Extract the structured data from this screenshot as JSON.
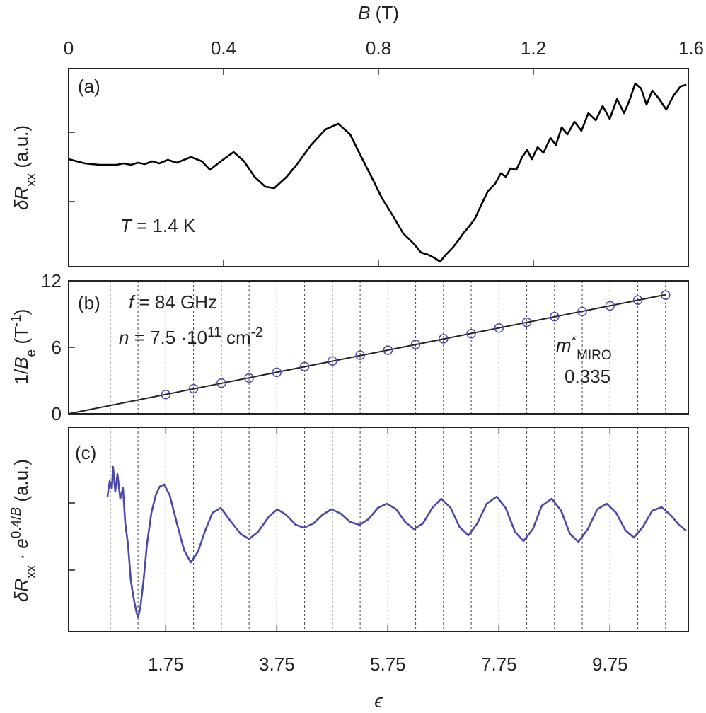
{
  "chart_data": [
    {
      "type": "line",
      "panel_label": "(a)",
      "xlabel": [
        {
          "text": "B",
          "style": "italic"
        },
        {
          "text": " (T)"
        }
      ],
      "xaxis": "top",
      "xlim": [
        0,
        1.6
      ],
      "xticks": [
        0,
        0.4,
        0.8,
        1.2,
        1.6
      ],
      "ylim": [
        0,
        280
      ],
      "yticks": [
        92,
        190
      ],
      "ylabel": [
        {
          "text": "δR",
          "style": "italic"
        },
        {
          "text": "xx",
          "style": "sub"
        },
        {
          "text": "  (a.u.)"
        }
      ],
      "annotations": [
        [
          {
            "text": "T",
            "style": "italic"
          },
          {
            "text": " = 1.4 K"
          }
        ]
      ],
      "series": [
        {
          "color": "#000000",
          "x": [
            0,
            0.042,
            0.079,
            0.124,
            0.142,
            0.161,
            0.179,
            0.197,
            0.216,
            0.234,
            0.256,
            0.279,
            0.316,
            0.344,
            0.365,
            0.393,
            0.426,
            0.453,
            0.48,
            0.508,
            0.531,
            0.563,
            0.59,
            0.626,
            0.663,
            0.696,
            0.727,
            0.754,
            0.782,
            0.809,
            0.837,
            0.864,
            0.892,
            0.91,
            0.928,
            0.946,
            0.959,
            0.974,
            0.992,
            1.006,
            1.019,
            1.037,
            1.05,
            1.065,
            1.083,
            1.101,
            1.116,
            1.129,
            1.141,
            1.156,
            1.171,
            1.184,
            1.196,
            1.211,
            1.226,
            1.244,
            1.258,
            1.273,
            1.288,
            1.306,
            1.324,
            1.342,
            1.361,
            1.379,
            1.397,
            1.416,
            1.434,
            1.448,
            1.463,
            1.478,
            1.492,
            1.507,
            1.525,
            1.543,
            1.562,
            1.58,
            1.595
          ],
          "values": [
            152,
            146,
            144,
            144,
            146,
            144,
            147,
            145,
            149,
            146,
            151,
            147,
            155,
            149,
            137,
            149,
            162,
            149,
            127,
            113,
            111,
            127,
            145,
            172,
            194,
            202,
            187,
            157,
            127,
            97,
            72,
            47,
            32,
            20,
            17,
            12,
            7,
            17,
            27,
            37,
            47,
            59,
            69,
            87,
            107,
            117,
            132,
            127,
            139,
            137,
            155,
            165,
            152,
            169,
            161,
            182,
            172,
            197,
            187,
            205,
            192,
            217,
            207,
            227,
            209,
            237,
            217,
            235,
            259,
            252,
            229,
            249,
            237,
            222,
            242,
            255,
            257
          ]
        }
      ]
    },
    {
      "type": "scatter",
      "panel_label": "(b)",
      "xlim": [
        0,
        11.16
      ],
      "ylim": [
        0,
        12
      ],
      "yticks": [
        0,
        6,
        12
      ],
      "ylabel": [
        {
          "text": "1/"
        },
        {
          "text": "B",
          "style": "italic"
        },
        {
          "text": "e",
          "style": "sub"
        },
        {
          "text": " (T"
        },
        {
          "text": "-1",
          "style": "sup"
        },
        {
          "text": ")"
        }
      ],
      "vlines": [
        0.75,
        1.25,
        1.75,
        2.25,
        2.75,
        3.25,
        3.75,
        4.25,
        4.75,
        5.25,
        5.75,
        6.25,
        6.75,
        7.25,
        7.75,
        8.25,
        8.75,
        9.25,
        9.75,
        10.25,
        10.75
      ],
      "annotations": [
        [
          {
            "text": "f",
            "style": "italic"
          },
          {
            "text": " = 84 GHz"
          }
        ],
        [
          {
            "text": "n",
            "style": "italic"
          },
          {
            "text": " = 7.5 ·10"
          },
          {
            "text": "11",
            "style": "sup"
          },
          {
            "text": " cm"
          },
          {
            "text": "-2",
            "style": "sup"
          }
        ],
        [
          {
            "text": "m",
            "style": "italic"
          },
          {
            "text": "*",
            "style": "sup"
          },
          {
            "text": "MIRO",
            "style": "sub"
          }
        ],
        [
          {
            "text": "0.335"
          }
        ]
      ],
      "series": [
        {
          "marker": "line",
          "color": "#222222",
          "x": [
            0,
            10.75
          ],
          "values": [
            0,
            10.75
          ]
        },
        {
          "marker": "circle",
          "color": "#4a4aa8",
          "x": [
            1.75,
            2.25,
            2.75,
            3.25,
            3.75,
            4.25,
            4.75,
            5.25,
            5.75,
            6.25,
            6.75,
            7.25,
            7.75,
            8.25,
            8.75,
            9.25,
            9.75,
            10.25,
            10.75
          ],
          "values": [
            1.74,
            2.26,
            2.77,
            3.23,
            3.74,
            4.26,
            4.77,
            5.29,
            5.74,
            6.26,
            6.77,
            7.23,
            7.74,
            8.26,
            8.77,
            9.23,
            9.74,
            10.26,
            10.71
          ]
        }
      ]
    },
    {
      "type": "line",
      "panel_label": "(c)",
      "xlabel": [
        {
          "text": "ϵ",
          "style": "italic"
        }
      ],
      "xaxis": "bottom",
      "xlim": [
        0,
        11.16
      ],
      "xticks": [
        1.75,
        3.75,
        5.75,
        7.75,
        9.75
      ],
      "ylim": [
        0,
        289
      ],
      "yticks": [
        87,
        182
      ],
      "ylabel": [
        {
          "text": "δR",
          "style": "italic"
        },
        {
          "text": "xx",
          "style": "sub"
        },
        {
          "text": " · "
        },
        {
          "text": "e",
          "style": "italic"
        },
        {
          "text": "0.4/",
          "style": "sup"
        },
        {
          "text": "B",
          "style": "italic-sup"
        },
        {
          "text": " (a.u.)"
        }
      ],
      "vlines": [
        0.75,
        1.25,
        1.75,
        2.25,
        2.75,
        3.25,
        3.75,
        4.25,
        4.75,
        5.25,
        5.75,
        6.25,
        6.75,
        7.25,
        7.75,
        8.25,
        8.75,
        9.25,
        9.75,
        10.25,
        10.75
      ],
      "series": [
        {
          "color": "#4a4aa8",
          "x": [
            0.7,
            0.74,
            0.78,
            0.8,
            0.84,
            0.88,
            0.93,
            0.98,
            1.02,
            1.07,
            1.12,
            1.17,
            1.22,
            1.25,
            1.29,
            1.35,
            1.41,
            1.49,
            1.57,
            1.64,
            1.72,
            1.82,
            1.95,
            2.08,
            2.2,
            2.33,
            2.46,
            2.59,
            2.74,
            2.9,
            3.1,
            3.25,
            3.41,
            3.61,
            3.76,
            3.92,
            4.09,
            4.24,
            4.41,
            4.57,
            4.73,
            4.9,
            5.07,
            5.24,
            5.4,
            5.57,
            5.73,
            5.9,
            6.06,
            6.22,
            6.38,
            6.55,
            6.71,
            6.88,
            7.04,
            7.2,
            7.36,
            7.53,
            7.71,
            7.87,
            8.04,
            8.19,
            8.36,
            8.52,
            8.7,
            8.87,
            9.03,
            9.18,
            9.35,
            9.52,
            9.69,
            9.86,
            10.03,
            10.18,
            10.34,
            10.51,
            10.68,
            10.84,
            10.99,
            11.12
          ],
          "values": [
            191,
            213,
            203,
            233,
            198,
            223,
            188,
            203,
            153,
            123,
            73,
            48,
            28,
            21,
            33,
            73,
            123,
            168,
            193,
            205,
            208,
            193,
            153,
            115,
            98,
            113,
            143,
            168,
            175,
            158,
            138,
            131,
            141,
            163,
            173,
            165,
            151,
            147,
            153,
            165,
            173,
            167,
            155,
            151,
            159,
            175,
            181,
            173,
            155,
            145,
            153,
            175,
            188,
            175,
            148,
            136,
            153,
            181,
            191,
            175,
            141,
            128,
            145,
            178,
            188,
            171,
            138,
            127,
            145,
            173,
            181,
            168,
            143,
            133,
            148,
            171,
            176,
            165,
            151,
            143
          ]
        }
      ]
    }
  ]
}
